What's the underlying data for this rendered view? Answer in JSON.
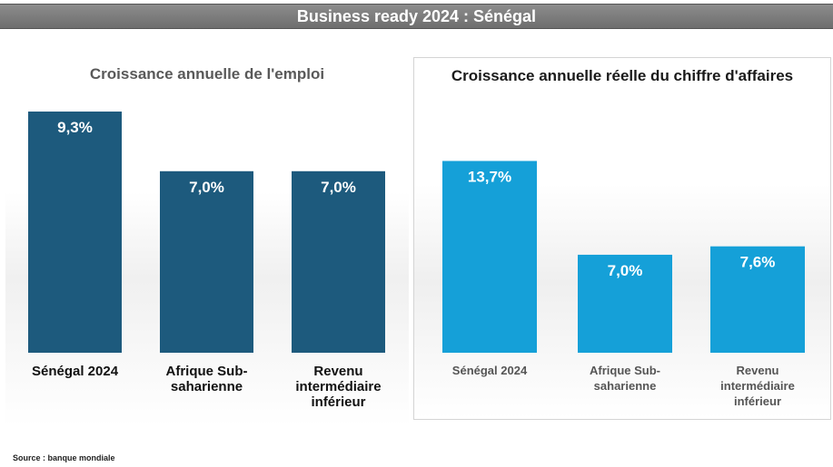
{
  "header": {
    "title": "Business ready 2024 : Sénégal"
  },
  "chart_data": [
    {
      "type": "bar",
      "title": "Croissance annuelle de l'emploi",
      "categories": [
        "Sénégal 2024",
        "Afrique Sub-saharienne",
        "Revenu intermédiaire inférieur"
      ],
      "category_lines": [
        [
          "Sénégal 2024"
        ],
        [
          "Afrique Sub-",
          "saharienne"
        ],
        [
          "Revenu",
          "intermédiaire",
          "inférieur"
        ]
      ],
      "values": [
        9.3,
        7.0,
        7.0
      ],
      "labels": [
        "9,3%",
        "7,0%",
        "7,0%"
      ],
      "ylim": [
        0,
        10
      ],
      "grid": false,
      "colors": {
        "bar": "#1d5a7d",
        "label": "#ffffff",
        "category": "#111111"
      }
    },
    {
      "type": "bar",
      "title": "Croissance annuelle réelle du chiffre d'affaires",
      "categories": [
        "Sénégal 2024",
        "Afrique Sub-saharienne",
        "Revenu intermédiaire inférieur"
      ],
      "category_lines": [
        [
          "Sénégal 2024"
        ],
        [
          "Afrique Sub-",
          "saharienne"
        ],
        [
          "Revenu",
          "intermédiaire",
          "inférieur"
        ]
      ],
      "values": [
        13.7,
        7.0,
        7.6
      ],
      "labels": [
        "13,7%",
        "7,0%",
        "7,6%"
      ],
      "ylim": [
        0,
        16
      ],
      "grid": false,
      "colors": {
        "bar": "#15a0d8",
        "label": "#ffffff",
        "category": "#555555"
      }
    }
  ],
  "footer": {
    "source": "Source : banque mondiale"
  }
}
